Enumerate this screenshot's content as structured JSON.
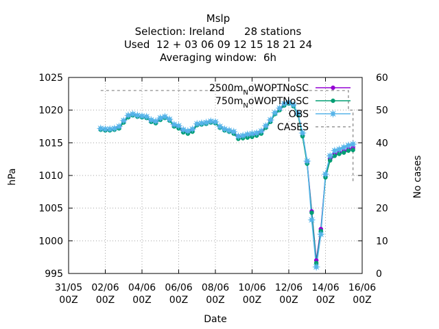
{
  "chart_data": {
    "type": "line",
    "title": "Mslp",
    "subtitle_lines": [
      "Selection: Ireland      28 stations",
      "Used  12 + 03 06 09 12 15 18 21 24",
      "Averaging window:  6h"
    ],
    "xlabel": "Date",
    "ylabel": "hPa",
    "y2label": "No cases",
    "x_unit": "days since 31/05 00Z",
    "xlim": [
      0,
      16
    ],
    "ylim": [
      995,
      1025
    ],
    "y2lim": [
      0,
      60
    ],
    "x_ticks": [
      {
        "value": 0,
        "label": [
          "31/05",
          "00Z"
        ]
      },
      {
        "value": 2,
        "label": [
          "02/06",
          "00Z"
        ]
      },
      {
        "value": 4,
        "label": [
          "04/06",
          "00Z"
        ]
      },
      {
        "value": 6,
        "label": [
          "06/06",
          "00Z"
        ]
      },
      {
        "value": 8,
        "label": [
          "08/06",
          "00Z"
        ]
      },
      {
        "value": 10,
        "label": [
          "10/06",
          "00Z"
        ]
      },
      {
        "value": 12,
        "label": [
          "12/06",
          "00Z"
        ]
      },
      {
        "value": 14,
        "label": [
          "14/06",
          "00Z"
        ]
      },
      {
        "value": 16,
        "label": [
          "16/06",
          "00Z"
        ]
      }
    ],
    "y_ticks": [
      995,
      1000,
      1005,
      1010,
      1015,
      1020,
      1025
    ],
    "y2_ticks": [
      0,
      10,
      20,
      30,
      40,
      50,
      60
    ],
    "grid": true,
    "legend_position": "top-right",
    "series": [
      {
        "name": "2500m_N_oWOPTNoSC",
        "legend_main": "2500m",
        "legend_sub": "N",
        "legend_rest": "oWOPTNoSC",
        "color": "#9400d3",
        "marker": "circle",
        "x": [
          1.75,
          2.0,
          2.25,
          2.5,
          2.75,
          3.0,
          3.25,
          3.5,
          3.75,
          4.0,
          4.25,
          4.5,
          4.75,
          5.0,
          5.25,
          5.5,
          5.75,
          6.0,
          6.25,
          6.5,
          6.75,
          7.0,
          7.25,
          7.5,
          7.75,
          8.0,
          8.25,
          8.5,
          8.75,
          9.0,
          9.25,
          9.5,
          9.75,
          10.0,
          10.25,
          10.5,
          10.75,
          11.0,
          11.25,
          11.5,
          11.75,
          12.0,
          12.25,
          12.5,
          12.75,
          13.0,
          13.25,
          13.5,
          13.75,
          14.0,
          14.25,
          14.5,
          14.75,
          15.0,
          15.25,
          15.5
        ],
        "y": [
          1017.1,
          1017.0,
          1017.0,
          1017.1,
          1017.3,
          1018.2,
          1019.0,
          1019.3,
          1019.1,
          1019.0,
          1018.9,
          1018.3,
          1018.1,
          1018.6,
          1018.9,
          1018.5,
          1017.6,
          1017.4,
          1016.8,
          1016.6,
          1016.9,
          1017.8,
          1017.9,
          1018.0,
          1018.2,
          1018.1,
          1017.4,
          1017.0,
          1016.8,
          1016.5,
          1016.0,
          1015.9,
          1016.0,
          1016.2,
          1016.3,
          1016.6,
          1017.4,
          1018.3,
          1019.5,
          1020.1,
          1020.8,
          1021.1,
          1020.7,
          1019.4,
          1016.2,
          1012.0,
          1004.5,
          997.0,
          1001.8,
          1009.9,
          1012.5,
          1013.2,
          1013.5,
          1013.7,
          1014.0,
          1014.2
        ]
      },
      {
        "name": "750m_N_oWOPTNoSC",
        "legend_main": "750m",
        "legend_sub": "N",
        "legend_rest": "oWOPTNoSC",
        "color": "#009e73",
        "marker": "circle",
        "x": [
          1.75,
          2.0,
          2.25,
          2.5,
          2.75,
          3.0,
          3.25,
          3.5,
          3.75,
          4.0,
          4.25,
          4.5,
          4.75,
          5.0,
          5.25,
          5.5,
          5.75,
          6.0,
          6.25,
          6.5,
          6.75,
          7.0,
          7.25,
          7.5,
          7.75,
          8.0,
          8.25,
          8.5,
          8.75,
          9.0,
          9.25,
          9.5,
          9.75,
          10.0,
          10.25,
          10.5,
          10.75,
          11.0,
          11.25,
          11.5,
          11.75,
          12.0,
          12.25,
          12.5,
          12.75,
          13.0,
          13.25,
          13.5,
          13.75,
          14.0,
          14.25,
          14.5,
          14.75,
          15.0,
          15.25,
          15.5
        ],
        "y": [
          1017.0,
          1016.9,
          1016.9,
          1017.0,
          1017.2,
          1018.1,
          1018.9,
          1019.2,
          1019.0,
          1018.9,
          1018.8,
          1018.2,
          1018.0,
          1018.5,
          1018.8,
          1018.4,
          1017.5,
          1017.2,
          1016.6,
          1016.4,
          1016.7,
          1017.7,
          1017.8,
          1017.9,
          1018.1,
          1018.0,
          1017.3,
          1016.9,
          1016.7,
          1016.4,
          1015.6,
          1015.7,
          1015.8,
          1015.9,
          1016.1,
          1016.4,
          1017.3,
          1018.2,
          1019.4,
          1020.0,
          1020.7,
          1021.0,
          1020.6,
          1019.3,
          1016.0,
          1011.8,
          1004.3,
          996.6,
          1001.5,
          1009.7,
          1012.3,
          1013.0,
          1013.3,
          1013.5,
          1013.8,
          1013.9
        ]
      },
      {
        "name": "OBS",
        "legend_main": "OBS",
        "legend_sub": "",
        "legend_rest": "",
        "color": "#56b4e9",
        "marker": "star",
        "x": [
          1.75,
          2.0,
          2.25,
          2.5,
          2.75,
          3.0,
          3.25,
          3.5,
          3.75,
          4.0,
          4.25,
          4.5,
          4.75,
          5.0,
          5.25,
          5.5,
          5.75,
          6.0,
          6.25,
          6.5,
          6.75,
          7.0,
          7.25,
          7.5,
          7.75,
          8.0,
          8.25,
          8.5,
          8.75,
          9.0,
          9.25,
          9.5,
          9.75,
          10.0,
          10.25,
          10.5,
          10.75,
          11.0,
          11.25,
          11.5,
          11.75,
          12.0,
          12.25,
          12.5,
          12.75,
          13.0,
          13.25,
          13.5,
          13.75,
          14.0,
          14.25,
          14.5,
          14.75,
          15.0,
          15.25,
          15.5
        ],
        "y": [
          1017.2,
          1017.1,
          1017.1,
          1017.2,
          1017.5,
          1018.4,
          1019.2,
          1019.4,
          1019.2,
          1019.1,
          1019.0,
          1018.5,
          1018.3,
          1018.8,
          1019.0,
          1018.6,
          1017.8,
          1017.6,
          1017.0,
          1016.8,
          1017.1,
          1017.9,
          1018.0,
          1018.1,
          1018.3,
          1018.2,
          1017.5,
          1017.1,
          1016.9,
          1016.7,
          1016.0,
          1016.1,
          1016.3,
          1016.4,
          1016.5,
          1016.8,
          1017.6,
          1018.5,
          1019.6,
          1020.3,
          1021.0,
          1021.2,
          1020.8,
          1019.5,
          1016.5,
          1012.2,
          1003.2,
          996.0,
          1001.0,
          1010.2,
          1013.0,
          1013.8,
          1014.0,
          1014.3,
          1014.6,
          1014.8
        ]
      },
      {
        "name": "CASES",
        "legend_main": "CASES",
        "legend_sub": "",
        "legend_rest": "",
        "color": "#808080",
        "dashed": true,
        "axis": "y2",
        "x": [
          1.75,
          2.0,
          3.0,
          4.0,
          5.0,
          6.0,
          7.0,
          8.0,
          9.0,
          10.0,
          11.0,
          12.0,
          13.0,
          14.0,
          15.0,
          15.25,
          15.25,
          15.5,
          15.5
        ],
        "y": [
          56,
          56,
          56,
          56,
          56,
          56,
          56,
          56,
          56,
          56,
          56,
          56,
          56,
          56,
          56,
          56,
          50,
          50,
          28
        ]
      }
    ]
  }
}
